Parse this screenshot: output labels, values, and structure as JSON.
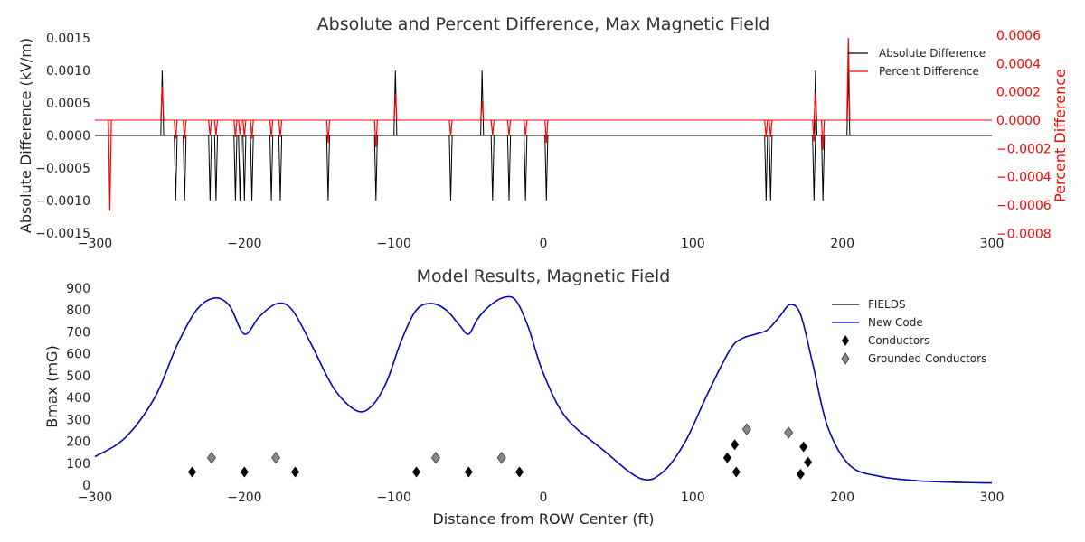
{
  "chart_data": [
    {
      "type": "line",
      "title": "Absolute and Percent Difference, Max Magnetic Field",
      "xlabel": "",
      "ylabel": "Absolute Difference (kV/m)",
      "y2label": "Percent Difference",
      "xlim": [
        -300,
        300
      ],
      "ylim": [
        -0.0015,
        0.0015
      ],
      "y2lim": [
        -0.0008,
        0.0006
      ],
      "x_ticks": [
        "−300",
        "−200",
        "−100",
        "0",
        "100",
        "200",
        "300"
      ],
      "y_ticks": [
        "−0.0015",
        "−0.0010",
        "−0.0005",
        "0.0000",
        "0.0005",
        "0.0010",
        "0.0015"
      ],
      "y2_ticks": [
        "−0.0008",
        "−0.0006",
        "−0.0004",
        "−0.0002",
        "0.0000",
        "0.0002",
        "0.0004",
        "0.0006"
      ],
      "grid": false,
      "legend_position": "top-right",
      "colors": {
        "absolute": "#000000",
        "percent": "#ff0000",
        "secondary_axis": "#ff0000"
      },
      "series": [
        {
          "name": "Absolute Difference",
          "axis": "left",
          "baseline": 0,
          "spikes": [
            {
              "x": -255,
              "y": 0.001
            },
            {
              "x": -99,
              "y": 0.001
            },
            {
              "x": -41,
              "y": 0.001
            },
            {
              "x": 182,
              "y": 0.001
            },
            {
              "x": 204,
              "y": 0.001
            },
            {
              "x": -246,
              "y": -0.001
            },
            {
              "x": -240,
              "y": -0.001
            },
            {
              "x": -223,
              "y": -0.001
            },
            {
              "x": -219,
              "y": -0.001
            },
            {
              "x": -206,
              "y": -0.001
            },
            {
              "x": -203,
              "y": -0.001
            },
            {
              "x": -200,
              "y": -0.001
            },
            {
              "x": -195,
              "y": -0.001
            },
            {
              "x": -182,
              "y": -0.001
            },
            {
              "x": -176,
              "y": -0.001
            },
            {
              "x": -144,
              "y": -0.001
            },
            {
              "x": -112,
              "y": -0.001
            },
            {
              "x": -62,
              "y": -0.001
            },
            {
              "x": -34,
              "y": -0.001
            },
            {
              "x": -23,
              "y": -0.001
            },
            {
              "x": -12,
              "y": -0.001
            },
            {
              "x": 2,
              "y": -0.001
            },
            {
              "x": 149,
              "y": -0.001
            },
            {
              "x": 152,
              "y": -0.001
            },
            {
              "x": 181,
              "y": -0.001
            },
            {
              "x": 187,
              "y": -0.001
            }
          ]
        },
        {
          "name": "Percent Difference",
          "axis": "right",
          "baseline": 0,
          "spikes": [
            {
              "x": -290,
              "y": -0.00064
            },
            {
              "x": -255,
              "y": 0.00024
            },
            {
              "x": -246,
              "y": -0.00013
            },
            {
              "x": -240,
              "y": -0.00013
            },
            {
              "x": -223,
              "y": -0.00011
            },
            {
              "x": -219,
              "y": -0.00011
            },
            {
              "x": -206,
              "y": -0.00012
            },
            {
              "x": -203,
              "y": -0.0001
            },
            {
              "x": -200,
              "y": -0.00012
            },
            {
              "x": -195,
              "y": -0.00013
            },
            {
              "x": -182,
              "y": -0.00012
            },
            {
              "x": -176,
              "y": -0.00012
            },
            {
              "x": -144,
              "y": -0.00016
            },
            {
              "x": -112,
              "y": -0.00019
            },
            {
              "x": -99,
              "y": 0.00018
            },
            {
              "x": -62,
              "y": -0.00011
            },
            {
              "x": -41,
              "y": 0.00013
            },
            {
              "x": -34,
              "y": -0.00011
            },
            {
              "x": -23,
              "y": -0.00011
            },
            {
              "x": -12,
              "y": -0.00011
            },
            {
              "x": 2,
              "y": -0.00016
            },
            {
              "x": 149,
              "y": -0.00012
            },
            {
              "x": 152,
              "y": -0.00012
            },
            {
              "x": 181,
              "y": -0.00015
            },
            {
              "x": 182,
              "y": 0.00019
            },
            {
              "x": 187,
              "y": -0.00021
            },
            {
              "x": 204,
              "y": 0.00058
            }
          ]
        }
      ]
    },
    {
      "type": "line",
      "title": "Model Results, Magnetic Field",
      "xlabel": "Distance from ROW Center (ft)",
      "ylabel": "Bmax (mG)",
      "xlim": [
        -300,
        300
      ],
      "ylim": [
        0,
        900
      ],
      "x_ticks": [
        "−300",
        "−200",
        "−100",
        "0",
        "100",
        "200",
        "300"
      ],
      "y_ticks": [
        "0",
        "100",
        "200",
        "300",
        "400",
        "500",
        "600",
        "700",
        "800",
        "900"
      ],
      "grid": false,
      "legend_position": "top-right",
      "colors": {
        "fields": "#000000",
        "new_code": "#0000cc",
        "conductors": "#000000",
        "grounded": "#888888"
      },
      "series": [
        {
          "name": "FIELDS",
          "x": [
            -300,
            -280,
            -260,
            -245,
            -232,
            -220,
            -210,
            -200,
            -190,
            -178,
            -168,
            -155,
            -140,
            -125,
            -115,
            -105,
            -95,
            -85,
            -75,
            -65,
            -56,
            -50,
            -44,
            -35,
            -25,
            -18,
            -10,
            0,
            15,
            40,
            65,
            80,
            95,
            110,
            125,
            133,
            142,
            150,
            158,
            165,
            172,
            180,
            190,
            205,
            225,
            250,
            280,
            300
          ],
          "y": [
            130,
            215,
            400,
            640,
            800,
            855,
            820,
            690,
            770,
            830,
            800,
            640,
            440,
            340,
            360,
            470,
            660,
            800,
            830,
            800,
            730,
            690,
            760,
            825,
            860,
            840,
            720,
            510,
            310,
            160,
            30,
            60,
            200,
            420,
            620,
            670,
            690,
            710,
            770,
            825,
            780,
            560,
            270,
            90,
            40,
            20,
            12,
            10
          ]
        },
        {
          "name": "New Code",
          "x": [
            -300,
            -280,
            -260,
            -245,
            -232,
            -220,
            -210,
            -200,
            -190,
            -178,
            -168,
            -155,
            -140,
            -125,
            -115,
            -105,
            -95,
            -85,
            -75,
            -65,
            -56,
            -50,
            -44,
            -35,
            -25,
            -18,
            -10,
            0,
            15,
            40,
            65,
            80,
            95,
            110,
            125,
            133,
            142,
            150,
            158,
            165,
            172,
            180,
            190,
            205,
            225,
            250,
            280,
            300
          ],
          "y": [
            130,
            215,
            400,
            640,
            800,
            855,
            820,
            690,
            770,
            830,
            800,
            640,
            440,
            340,
            360,
            470,
            660,
            800,
            830,
            800,
            730,
            690,
            760,
            825,
            860,
            840,
            720,
            510,
            310,
            160,
            30,
            60,
            200,
            420,
            620,
            670,
            690,
            710,
            770,
            825,
            780,
            560,
            270,
            90,
            40,
            20,
            12,
            10
          ]
        },
        {
          "name": "Conductors",
          "marker": "diamond",
          "x": [
            -235,
            -200,
            -166,
            -85,
            -50,
            -16,
            123,
            128,
            129,
            172,
            174,
            177
          ],
          "y": [
            60,
            60,
            60,
            60,
            60,
            60,
            125,
            185,
            60,
            50,
            175,
            105
          ]
        },
        {
          "name": "Grounded Conductors",
          "marker": "diamond",
          "x": [
            -222,
            -179,
            -72,
            -28,
            136,
            164
          ],
          "y": [
            125,
            125,
            125,
            125,
            255,
            240
          ]
        }
      ]
    }
  ]
}
